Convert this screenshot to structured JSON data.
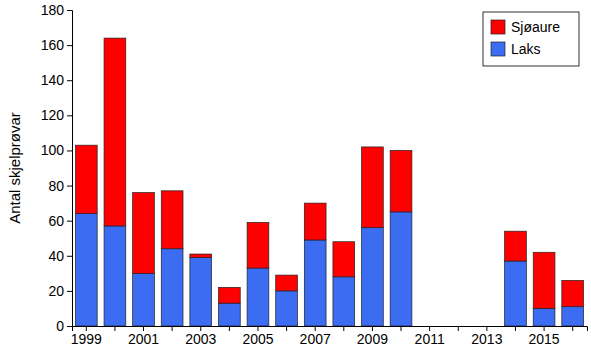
{
  "chart_data": {
    "type": "bar",
    "stacked": true,
    "legend": "top-right",
    "y_label": "Antal skjelprøvar",
    "categories": [
      1999,
      null,
      2001,
      null,
      2003,
      null,
      2005,
      null,
      2007,
      null,
      2009,
      null,
      2011,
      null,
      2013,
      null,
      2015,
      null
    ],
    "series": [
      {
        "name": "Laks",
        "color": "#3b6cf2",
        "values": [
          64,
          57,
          30,
          44,
          39,
          13,
          33,
          20,
          49,
          28,
          56,
          65,
          null,
          null,
          null,
          37,
          10,
          11
        ]
      },
      {
        "name": "Sjøaure",
        "color": "#ff0000",
        "values": [
          39,
          107,
          46,
          33,
          2,
          9,
          26,
          9,
          21,
          20,
          46,
          35,
          null,
          null,
          null,
          17,
          32,
          15
        ]
      }
    ],
    "ylim": [
      0,
      180
    ],
    "yticks": [
      0,
      20,
      40,
      60,
      80,
      100,
      120,
      140,
      160,
      180
    ]
  }
}
